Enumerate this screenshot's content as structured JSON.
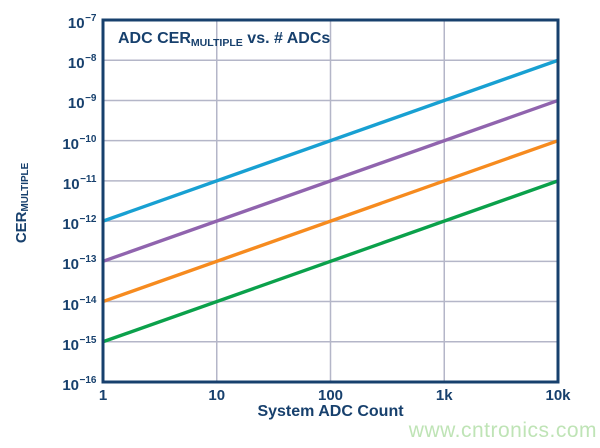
{
  "colors": {
    "navy": "#17406d",
    "grid": "#b4b6c8",
    "background": "#ffffff",
    "watermark_color": "#bfe4b6"
  },
  "labels": {
    "title": {
      "prefix": "ADC CER",
      "subscript": "MULTIPLE",
      "suffix": " vs. # ADCs"
    },
    "y_axis": {
      "prefix": "CER",
      "subscript": "MULTIPLE"
    },
    "x_axis": "System ADC Count"
  },
  "watermark": "www.cntronics.com",
  "chart_data": {
    "type": "line",
    "title": "ADC CER_MULTIPLE vs. # ADCs",
    "xlabel": "System ADC Count",
    "ylabel": "CER_MULTIPLE",
    "x_scale": "log",
    "y_scale": "log",
    "xlim": [
      1,
      10000
    ],
    "ylim": [
      1e-16,
      1e-07
    ],
    "grid": true,
    "legend_position": "none",
    "x_ticks": [
      "1",
      "10",
      "100",
      "1k",
      "10k"
    ],
    "x_tick_values": [
      1,
      10,
      100,
      1000,
      10000
    ],
    "y_tick_exponents": [
      -7,
      -8,
      -9,
      -10,
      -11,
      -12,
      -13,
      -14,
      -15,
      -16
    ],
    "series": [
      {
        "name": "series-blue",
        "color": "#18a0d2",
        "x": [
          1,
          10000
        ],
        "y": [
          1e-12,
          1e-08
        ]
      },
      {
        "name": "series-purple",
        "color": "#9064ae",
        "x": [
          1,
          10000
        ],
        "y": [
          1e-13,
          1e-09
        ]
      },
      {
        "name": "series-orange",
        "color": "#f68b1f",
        "x": [
          1,
          10000
        ],
        "y": [
          1e-14,
          1e-10
        ]
      },
      {
        "name": "series-green",
        "color": "#0ba14b",
        "x": [
          1,
          10000
        ],
        "y": [
          1e-15,
          1e-11
        ]
      }
    ]
  }
}
